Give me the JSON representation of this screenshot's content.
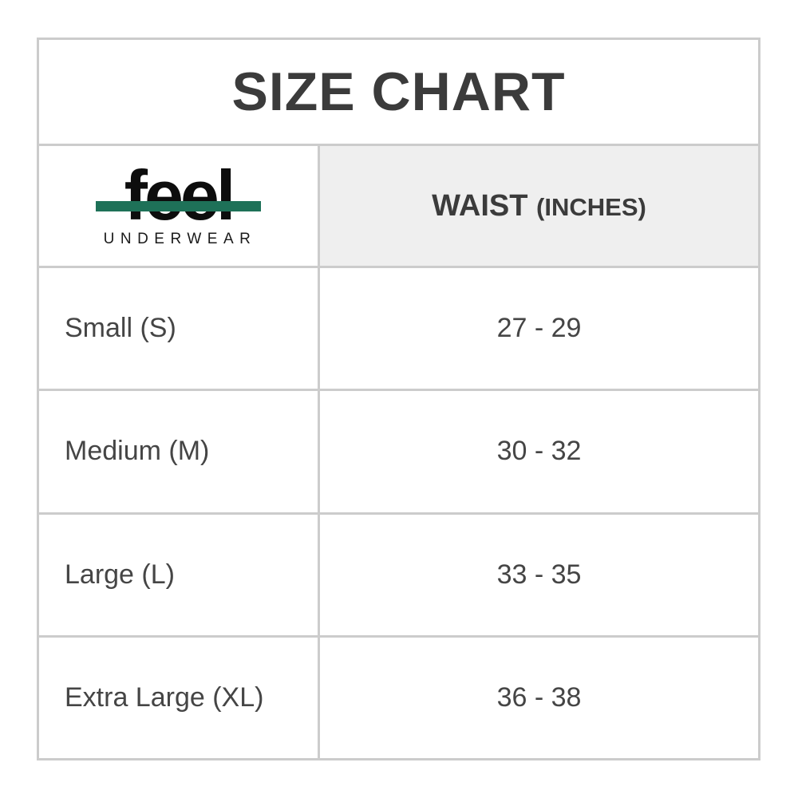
{
  "title": "SIZE CHART",
  "brand": {
    "name": "feel",
    "subtitle": "UNDERWEAR",
    "bar_color": "#1e7158"
  },
  "table": {
    "header": {
      "waist_label": "WAIST",
      "waist_unit": "(INCHES)"
    },
    "rows": [
      {
        "size": "Small (S)",
        "waist": "27 - 29"
      },
      {
        "size": "Medium (M)",
        "waist": "30 - 32"
      },
      {
        "size": "Large (L)",
        "waist": "33 - 35"
      },
      {
        "size": "Extra Large (XL)",
        "waist": "36 - 38"
      }
    ]
  },
  "colors": {
    "border": "#cccccc",
    "header_bg": "#efefef",
    "title_text": "#3b3b3b",
    "cell_text": "#454545"
  }
}
